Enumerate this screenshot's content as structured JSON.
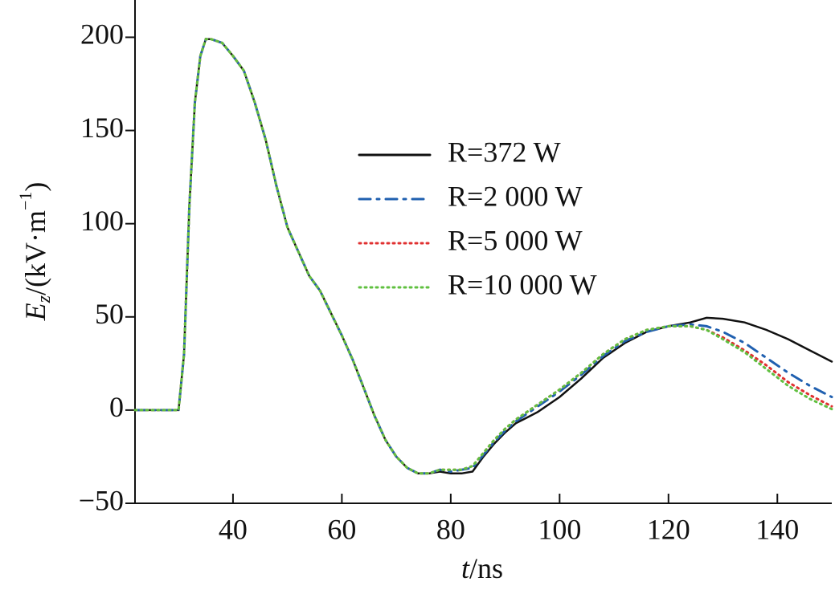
{
  "chart_data": {
    "type": "line",
    "xlabel": [
      "t",
      "/ns"
    ],
    "ylabel": [
      "E",
      "z",
      "/(kV·m",
      "−1",
      ")"
    ],
    "xlim": [
      22,
      150
    ],
    "ylim": [
      -50,
      220
    ],
    "xticks": [
      40,
      60,
      80,
      100,
      120,
      140
    ],
    "yticks": [
      {
        "value": -50,
        "label": "−50"
      },
      0,
      50,
      100,
      150,
      200
    ],
    "legend": "upper-center",
    "x": [
      22,
      30,
      31,
      32,
      33,
      34,
      35,
      36,
      38,
      40,
      42,
      44,
      46,
      48,
      50,
      52,
      54,
      56,
      58,
      60,
      62,
      64,
      66,
      68,
      70,
      72,
      74,
      76,
      78,
      80,
      82,
      84,
      86,
      88,
      90,
      92,
      94,
      96,
      98,
      100,
      104,
      108,
      112,
      116,
      120,
      124,
      127,
      130,
      134,
      138,
      142,
      146,
      150
    ],
    "series": [
      {
        "name": "R=372 W",
        "color": "#111111",
        "style": "solid",
        "values": [
          0,
          0,
          30,
          110,
          165,
          190,
          199,
          199,
          197,
          190,
          182,
          165,
          145,
          120,
          98,
          85,
          72,
          64,
          52,
          40,
          27,
          12,
          -3,
          -16,
          -25,
          -31,
          -34,
          -34,
          -33,
          -34,
          -34,
          -33,
          -25,
          -18,
          -12,
          -7,
          -4,
          -1,
          3,
          7,
          17,
          28,
          36,
          42,
          45,
          47,
          49.5,
          49,
          47,
          43,
          38,
          32,
          26
        ]
      },
      {
        "name": "R=2 000 W",
        "color": "#2060b0",
        "style": "dashdot",
        "values": [
          0,
          0,
          30,
          110,
          165,
          190,
          199,
          199,
          197,
          190,
          182,
          165,
          145,
          120,
          98,
          85,
          72,
          64,
          52,
          40,
          27,
          12,
          -3,
          -16,
          -25,
          -31,
          -34,
          -34,
          -32,
          -33,
          -32,
          -31,
          -24,
          -17,
          -11,
          -6,
          -2,
          2,
          6,
          10,
          19,
          29,
          37,
          42,
          45,
          46,
          45,
          42,
          36,
          28,
          20,
          13,
          7
        ]
      },
      {
        "name": "R=5 000 W",
        "color": "#e03030",
        "style": "dotted",
        "values": [
          0,
          0,
          30,
          110,
          165,
          190,
          199,
          199,
          197,
          190,
          182,
          165,
          145,
          120,
          98,
          85,
          72,
          64,
          52,
          40,
          27,
          12,
          -3,
          -16,
          -25,
          -31,
          -34,
          -34,
          -32,
          -32,
          -32,
          -30,
          -23,
          -16,
          -10,
          -5,
          -1,
          3,
          7,
          11,
          20,
          30,
          38,
          43,
          45,
          45,
          43,
          39,
          32,
          24,
          15,
          8,
          2
        ]
      },
      {
        "name": "R=10 000 W",
        "color": "#60c040",
        "style": "dotted",
        "values": [
          0,
          0,
          30,
          110,
          165,
          190,
          199,
          199,
          197,
          190,
          182,
          165,
          145,
          120,
          98,
          85,
          72,
          64,
          52,
          40,
          27,
          12,
          -3,
          -16,
          -25,
          -31,
          -34,
          -34,
          -32,
          -32,
          -32,
          -30,
          -23,
          -16,
          -10,
          -5,
          -1,
          3,
          7,
          11,
          20,
          30,
          38,
          43,
          45,
          45,
          43,
          38,
          31,
          22,
          13,
          6,
          0.5
        ]
      }
    ]
  }
}
